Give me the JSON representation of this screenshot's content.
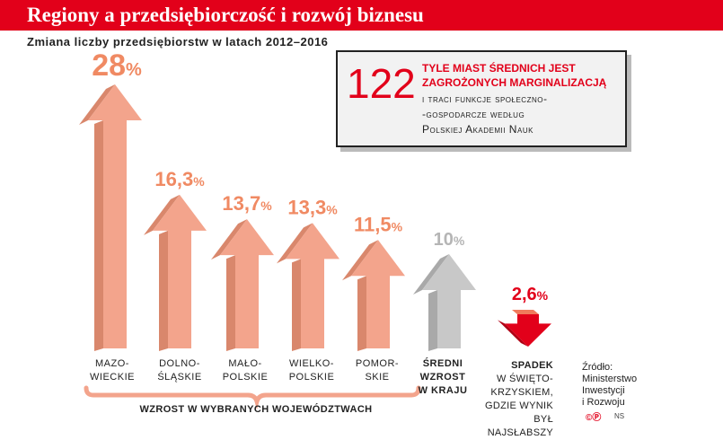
{
  "header": {
    "title": "Regiony a przedsiębiorczość i rozwój biznesu"
  },
  "subtitle": "Zmiana liczby przedsiębiorstw w latach 2012–2016",
  "callout": {
    "number": "122",
    "line1": "tyle miast średnich jest",
    "line2": "zagrożonych marginalizacją",
    "line3": "i traci funkcje społeczno-",
    "line4": "-gospodarcze według",
    "line5": "Polskiej Akademii Nauk"
  },
  "chart_data": {
    "type": "bar",
    "title": "Zmiana liczby przedsiębiorstw w latach 2012–2016",
    "unit": "%",
    "categories": [
      "Mazowieckie",
      "Dolnośląskie",
      "Małopolskie",
      "Wielkopolskie",
      "Pomorskie",
      "Średni wzrost w kraju",
      "Spadek w Świętokrzyskiem"
    ],
    "values": [
      28,
      16.3,
      13.7,
      13.3,
      11.5,
      10,
      -2.6
    ],
    "value_labels": [
      "28",
      "16,3",
      "13,7",
      "13,3",
      "11,5",
      "10",
      "2,6"
    ],
    "percent_sign": "%",
    "colors": {
      "region": "#f3a48c",
      "region_label": "#f08a63",
      "average": "#c8c8c8",
      "average_label": "#b5b5b5",
      "decline": "#e2001a"
    }
  },
  "categories": {
    "mazowieckie": [
      "Mazo-",
      "wieckie"
    ],
    "dolnoslaskie": [
      "Dolno-",
      "śląskie"
    ],
    "malopolskie": [
      "Mało-",
      "polskie"
    ],
    "wielkopolskie": [
      "Wielko-",
      "polskie"
    ],
    "pomorskie": [
      "Pomor-",
      "skie"
    ],
    "average": [
      "Średni",
      "wzrost",
      "w kraju"
    ],
    "decline": {
      "head": "Spadek",
      "lines": [
        "w Święto-",
        "krzyskiem,",
        "gdzie wynik",
        "był najsłabszy"
      ]
    }
  },
  "group_label": "WZROST W WYBRANYCH WOJEWÓDZTWACH",
  "source": {
    "line1": "Źródło:",
    "line2": "Ministerstwo",
    "line3": "Inwestycji",
    "line4": "i Rozwoju"
  },
  "credit": {
    "mark": "©Ⓟ",
    "initials": "NS"
  }
}
